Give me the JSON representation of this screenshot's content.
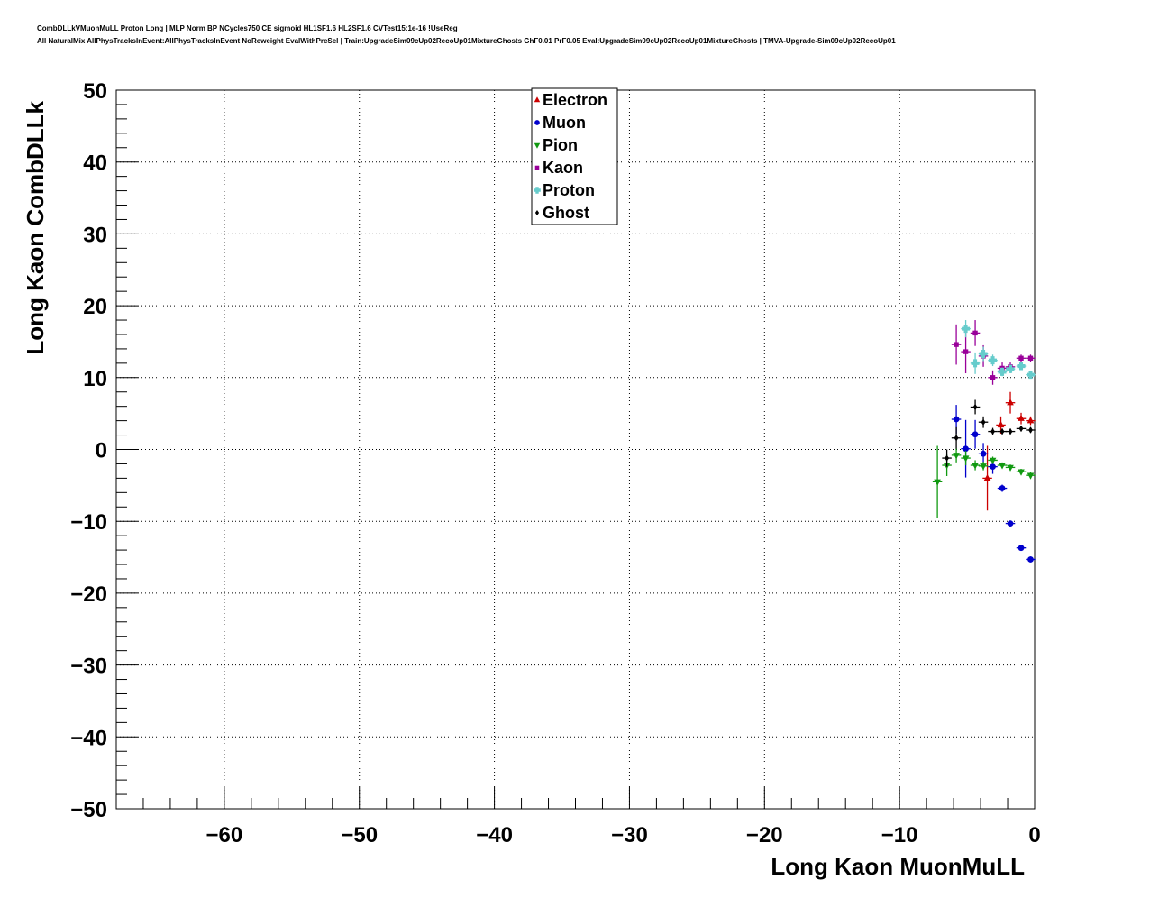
{
  "chart_data": {
    "type": "scatter",
    "title": "CombDLLkVMuonMuLL Proton Long | MLP Norm BP NCycles750 CE sigmoid HL1SF1.6 HL2SF1.6 CVTest15:1e-16 !UseReg",
    "subtitle": "All NaturalMix AllPhysTracksInEvent:AllPhysTracksInEvent NoReweight EvalWithPreSel | Train:UpgradeSim09cUp02RecoUp01MixtureGhosts GhF0.01 PrF0.05 Eval:UpgradeSim09cUp02RecoUp01MixtureGhosts | TMVA-Upgrade-Sim09cUp02RecoUp01",
    "xlabel": "Long Kaon MuonMuLL",
    "ylabel": "Long Kaon CombDLLk",
    "xlim": [
      -68,
      0
    ],
    "ylim": [
      -50,
      50
    ],
    "x_ticks": [
      -60,
      -50,
      -40,
      -30,
      -20,
      -10,
      0
    ],
    "x_tick_labels": [
      "−60",
      "−50",
      "−40",
      "−30",
      "−20",
      "−10",
      "0"
    ],
    "y_ticks": [
      50,
      40,
      30,
      20,
      10,
      0,
      -10,
      -20,
      -30,
      -40,
      -50
    ],
    "y_tick_labels": [
      "50",
      "40",
      "30",
      "20",
      "10",
      "0",
      "−10",
      "−20",
      "−30",
      "−40",
      "−50"
    ],
    "grid": true,
    "legend_position": "top-center",
    "series": [
      {
        "name": "Electron",
        "marker": "triangle-up",
        "color": "#cc0000",
        "points": [
          {
            "x": -3.5,
            "y": -4.0,
            "err": 4.5
          },
          {
            "x": -2.5,
            "y": 3.4,
            "err": 1.2
          },
          {
            "x": -1.8,
            "y": 6.5,
            "err": 1.5
          },
          {
            "x": -1.0,
            "y": 4.3,
            "err": 0.8
          },
          {
            "x": -0.3,
            "y": 4.0,
            "err": 0.6
          }
        ]
      },
      {
        "name": "Muon",
        "marker": "circle",
        "color": "#0000cc",
        "points": [
          {
            "x": -5.8,
            "y": 4.2,
            "err": 2.0
          },
          {
            "x": -5.1,
            "y": 0.1,
            "err": 4.0
          },
          {
            "x": -4.4,
            "y": 2.1,
            "err": 2.0
          },
          {
            "x": -3.8,
            "y": -0.6,
            "err": 1.5
          },
          {
            "x": -3.1,
            "y": -2.4,
            "err": 1.0
          },
          {
            "x": -2.4,
            "y": -5.4,
            "err": 0.5
          },
          {
            "x": -1.8,
            "y": -10.3,
            "err": 0.4
          },
          {
            "x": -1.0,
            "y": -13.7,
            "err": 0.4
          },
          {
            "x": -0.3,
            "y": -15.3,
            "err": 0.4
          }
        ]
      },
      {
        "name": "Pion",
        "marker": "triangle-down",
        "color": "#119911",
        "points": [
          {
            "x": -7.2,
            "y": -4.5,
            "err": 5.0
          },
          {
            "x": -6.5,
            "y": -2.2,
            "err": 1.5
          },
          {
            "x": -5.8,
            "y": -0.8,
            "err": 1.0
          },
          {
            "x": -5.1,
            "y": -1.2,
            "err": 1.0
          },
          {
            "x": -4.4,
            "y": -2.2,
            "err": 0.7
          },
          {
            "x": -3.8,
            "y": -2.3,
            "err": 0.6
          },
          {
            "x": -3.1,
            "y": -1.5,
            "err": 0.5
          },
          {
            "x": -2.4,
            "y": -2.2,
            "err": 0.4
          },
          {
            "x": -1.8,
            "y": -2.5,
            "err": 0.4
          },
          {
            "x": -1.0,
            "y": -3.1,
            "err": 0.4
          },
          {
            "x": -0.3,
            "y": -3.6,
            "err": 0.4
          }
        ]
      },
      {
        "name": "Kaon",
        "marker": "square",
        "color": "#990099",
        "points": [
          {
            "x": -5.8,
            "y": 14.6,
            "err": 2.8
          },
          {
            "x": -5.1,
            "y": 13.6,
            "err": 3.0
          },
          {
            "x": -4.4,
            "y": 16.2,
            "err": 1.8
          },
          {
            "x": -3.8,
            "y": 13.0,
            "err": 1.5
          },
          {
            "x": -3.1,
            "y": 10.0,
            "err": 1.0
          },
          {
            "x": -2.4,
            "y": 11.3,
            "err": 0.8
          },
          {
            "x": -1.8,
            "y": 11.5,
            "err": 0.6
          },
          {
            "x": -1.0,
            "y": 12.7,
            "err": 0.5
          },
          {
            "x": -0.3,
            "y": 12.7,
            "err": 0.5
          }
        ]
      },
      {
        "name": "Proton",
        "marker": "plus",
        "color": "#66cccc",
        "points": [
          {
            "x": -5.1,
            "y": 16.8,
            "err": 1.2
          },
          {
            "x": -4.4,
            "y": 12.0,
            "err": 1.5
          },
          {
            "x": -3.8,
            "y": 13.3,
            "err": 1.0
          },
          {
            "x": -3.1,
            "y": 12.4,
            "err": 0.8
          },
          {
            "x": -2.4,
            "y": 10.8,
            "err": 0.6
          },
          {
            "x": -1.8,
            "y": 11.2,
            "err": 0.6
          },
          {
            "x": -1.0,
            "y": 11.6,
            "err": 0.5
          },
          {
            "x": -0.3,
            "y": 10.4,
            "err": 0.5
          }
        ]
      },
      {
        "name": "Ghost",
        "marker": "diamond",
        "color": "#000000",
        "points": [
          {
            "x": -6.5,
            "y": -1.2,
            "err": 1.2
          },
          {
            "x": -5.8,
            "y": 1.6,
            "err": 1.5
          },
          {
            "x": -4.4,
            "y": 5.9,
            "err": 1.0
          },
          {
            "x": -3.8,
            "y": 3.8,
            "err": 0.8
          },
          {
            "x": -3.1,
            "y": 2.5,
            "err": 0.5
          },
          {
            "x": -2.4,
            "y": 2.5,
            "err": 0.4
          },
          {
            "x": -1.8,
            "y": 2.5,
            "err": 0.4
          },
          {
            "x": -1.0,
            "y": 2.9,
            "err": 0.4
          },
          {
            "x": -0.3,
            "y": 2.7,
            "err": 0.4
          }
        ]
      }
    ]
  }
}
